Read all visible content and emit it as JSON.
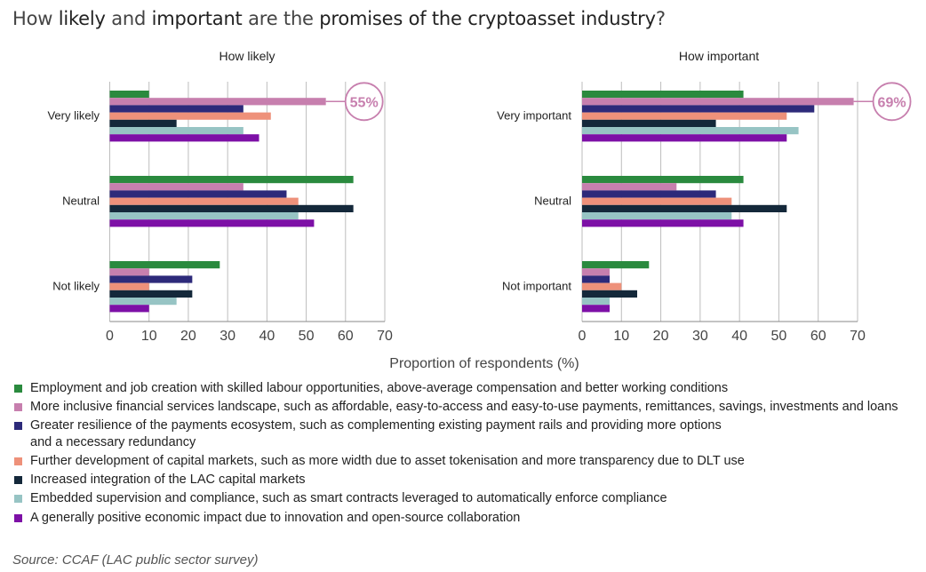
{
  "title": {
    "parts": [
      {
        "text": "How ",
        "emphasis": false
      },
      {
        "text": "likely",
        "emphasis": true
      },
      {
        "text": " and ",
        "emphasis": false
      },
      {
        "text": "important",
        "emphasis": true
      },
      {
        "text": " are the ",
        "emphasis": false
      },
      {
        "text": "promises of the cryptoasset industry",
        "emphasis": true
      },
      {
        "text": "?",
        "emphasis": false
      }
    ]
  },
  "colors": {
    "employment": "#2a8a3e",
    "inclusive": "#c77fae",
    "resilience": "#2d2a7a",
    "capital_markets": "#ee917a",
    "lac_integration": "#14283a",
    "supervision": "#97c4c4",
    "economic_impact": "#7d10a6",
    "callout": "#c77fae"
  },
  "chart_data": [
    {
      "type": "bar",
      "orientation": "horizontal",
      "title": "How likely",
      "xlabel": "Proportion of respondents (%)",
      "xlim": [
        0,
        70
      ],
      "xticks": [
        0,
        10,
        20,
        30,
        40,
        50,
        60,
        70
      ],
      "categories": [
        "Very likely",
        "Neutral",
        "Not likely"
      ],
      "series": [
        {
          "name": "Employment and job creation with skilled labour opportunities, above-average compensation and better working conditions",
          "color_key": "employment",
          "values": [
            10,
            62,
            28
          ]
        },
        {
          "name": "More inclusive financial services landscape, such as affordable, easy-to-access and easy-to-use payments, remittances, savings, investments and loans",
          "color_key": "inclusive",
          "values": [
            55,
            34,
            10
          ]
        },
        {
          "name": "Greater resilience of the payments ecosystem, such as complementing existing payment rails and providing more options and a necessary redundancy",
          "color_key": "resilience",
          "values": [
            34,
            45,
            21
          ]
        },
        {
          "name": "Further development of capital markets, such as more width due to asset tokenisation and more transparency due to DLT use",
          "color_key": "capital_markets",
          "values": [
            41,
            48,
            10
          ]
        },
        {
          "name": "Increased integration of the LAC capital markets",
          "color_key": "lac_integration",
          "values": [
            17,
            62,
            21
          ]
        },
        {
          "name": "Embedded supervision and compliance, such as smart contracts leveraged to automatically enforce compliance",
          "color_key": "supervision",
          "values": [
            34,
            48,
            17
          ]
        },
        {
          "name": "A generally positive economic impact due to innovation and open-source collaboration",
          "color_key": "economic_impact",
          "values": [
            38,
            52,
            10
          ]
        }
      ],
      "annotation": {
        "label": "55%",
        "series_index": 1,
        "category_index": 0
      }
    },
    {
      "type": "bar",
      "orientation": "horizontal",
      "title": "How important",
      "xlabel": "Proportion of respondents (%)",
      "xlim": [
        0,
        70
      ],
      "xticks": [
        0,
        10,
        20,
        30,
        40,
        50,
        60,
        70
      ],
      "categories": [
        "Very important",
        "Neutral",
        "Not important"
      ],
      "series": [
        {
          "name": "Employment and job creation with skilled labour opportunities, above-average compensation and better working conditions",
          "color_key": "employment",
          "values": [
            41,
            41,
            17
          ]
        },
        {
          "name": "More inclusive financial services landscape, such as affordable, easy-to-access and easy-to-use payments, remittances, savings, investments and loans",
          "color_key": "inclusive",
          "values": [
            69,
            24,
            7
          ]
        },
        {
          "name": "Greater resilience of the payments ecosystem, such as complementing existing payment rails and providing more options and a necessary redundancy",
          "color_key": "resilience",
          "values": [
            59,
            34,
            7
          ]
        },
        {
          "name": "Further development of capital markets, such as more width due to asset tokenisation and more transparency due to DLT use",
          "color_key": "capital_markets",
          "values": [
            52,
            38,
            10
          ]
        },
        {
          "name": "Increased integration of the LAC capital markets",
          "color_key": "lac_integration",
          "values": [
            34,
            52,
            14
          ]
        },
        {
          "name": "Embedded supervision and compliance, such as smart contracts leveraged to automatically enforce compliance",
          "color_key": "supervision",
          "values": [
            55,
            38,
            7
          ]
        },
        {
          "name": "A generally positive economic impact due to innovation and open-source collaboration",
          "color_key": "economic_impact",
          "values": [
            52,
            41,
            7
          ]
        }
      ],
      "annotation": {
        "label": "69%",
        "series_index": 1,
        "category_index": 0
      }
    }
  ],
  "legend": {
    "items": [
      {
        "label": "Employment and job creation with skilled labour opportunities, above-average compensation and better working conditions",
        "color": "#2a8a3e"
      },
      {
        "label": "More inclusive financial services landscape, such as affordable, easy-to-access and easy-to-use payments, remittances, savings, investments and loans",
        "color": "#c77fae"
      },
      {
        "label": "Greater resilience of the payments ecosystem, such as complementing existing payment rails and providing more options\nand a necessary redundancy",
        "color": "#2d2a7a"
      },
      {
        "label": "Further development of capital markets, such as more width due to asset tokenisation and more transparency due to DLT use",
        "color": "#ee917a"
      },
      {
        "label": "Increased integration of the LAC capital markets",
        "color": "#14283a"
      },
      {
        "label": "Embedded supervision and compliance, such as smart contracts leveraged to automatically enforce compliance",
        "color": "#97c4c4"
      },
      {
        "label": "A generally positive economic impact due to innovation and open-source collaboration",
        "color": "#7d10a6"
      }
    ]
  },
  "source": "Source: CCAF (LAC public sector survey)"
}
